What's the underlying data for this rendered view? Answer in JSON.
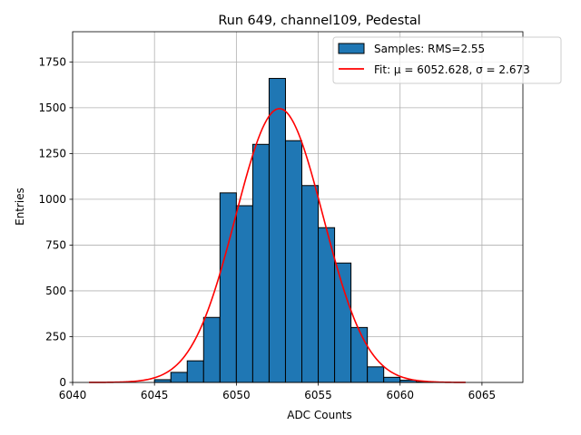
{
  "chart_data": {
    "type": "bar",
    "title": "Run 649, channel109, Pedestal",
    "xlabel": "ADC Counts",
    "ylabel": "Entries",
    "xlim": [
      6040.0,
      6067.5
    ],
    "ylim": [
      0,
      1915
    ],
    "grid": true,
    "legend_position": "top-right",
    "xticks": [
      6040,
      6045,
      6050,
      6055,
      6060,
      6065
    ],
    "yticks": [
      0,
      250,
      500,
      750,
      1000,
      1250,
      1500,
      1750
    ],
    "series": [
      {
        "name": "Samples: RMS=2.55",
        "kind": "histogram",
        "bin_width": 1,
        "color": "#1f77b4",
        "edge_color": "#000000",
        "bins": [
          6045,
          6046,
          6047,
          6048,
          6049,
          6050,
          6051,
          6052,
          6053,
          6054,
          6055,
          6056,
          6057,
          6058,
          6059,
          6060,
          6061
        ],
        "values": [
          15,
          55,
          118,
          355,
          1035,
          965,
          1300,
          1660,
          1320,
          1075,
          845,
          652,
          300,
          85,
          28,
          12,
          3
        ]
      },
      {
        "name": "Fit: μ = 6052.628, σ = 2.673",
        "kind": "gaussian-fit",
        "color": "#ff0000",
        "mu": 6052.628,
        "sigma": 2.673,
        "amplitude": 1495,
        "x_range": [
          6041,
          6064
        ]
      }
    ]
  }
}
